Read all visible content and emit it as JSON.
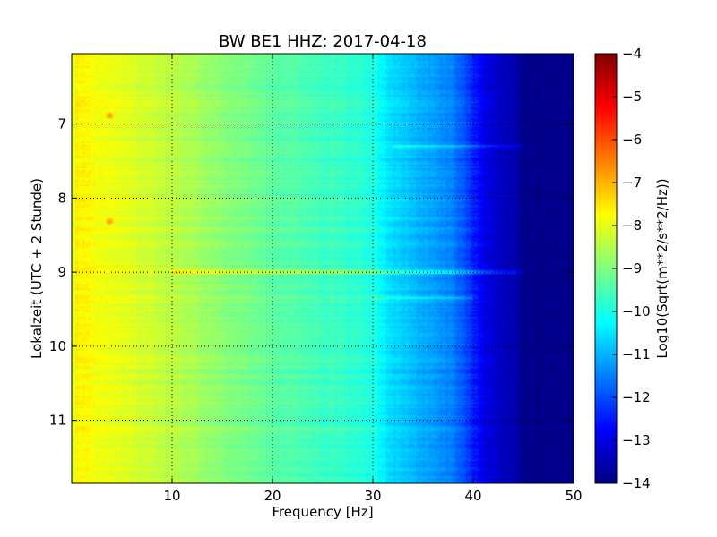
{
  "chart_data": {
    "type": "heatmap",
    "title": "BW BE1 HHZ: 2017-04-18",
    "xlabel": "Frequency [Hz]",
    "ylabel": "Lokalzeit (UTC + 2 Stunde)",
    "xlim": [
      0,
      50
    ],
    "ylim": [
      6.05,
      11.85
    ],
    "y_inverted": true,
    "x_ticks": [
      10,
      20,
      30,
      40,
      50
    ],
    "x_tick_labels": [
      "10",
      "20",
      "30",
      "40",
      "50"
    ],
    "y_ticks": [
      7,
      8,
      9,
      10,
      11
    ],
    "y_tick_labels": [
      "7",
      "8",
      "9",
      "10",
      "11"
    ],
    "grid": true,
    "grid_style": "dotted",
    "colormap": "jet",
    "colorbar": {
      "label": "Log10(Sqrt(m**2/s**2/Hz))",
      "range": [
        -14,
        -4
      ],
      "ticks": [
        -4,
        -5,
        -6,
        -7,
        -8,
        -9,
        -10,
        -11,
        -12,
        -13,
        -14
      ],
      "tick_labels": [
        "−4",
        "−5",
        "−6",
        "−7",
        "−8",
        "−9",
        "−10",
        "−11",
        "−12",
        "−13",
        "−14"
      ]
    },
    "spectrum_profile": {
      "frequency_hz": [
        0,
        0.5,
        2,
        5,
        10,
        15,
        20,
        25,
        30,
        31,
        32,
        34,
        36,
        38,
        39,
        40,
        41,
        42,
        43,
        44,
        44.5,
        45,
        50
      ],
      "value": [
        -8.3,
        -7.6,
        -7.8,
        -8.0,
        -8.4,
        -8.9,
        -9.3,
        -9.6,
        -9.9,
        -10.3,
        -10.6,
        -10.9,
        -11.2,
        -11.5,
        -11.9,
        -12.4,
        -12.9,
        -13.2,
        -13.4,
        -13.5,
        -13.7,
        -13.9,
        -13.9
      ]
    },
    "annotations": [
      {
        "type": "horizontal_line",
        "time_hour": 9.0,
        "freq_range_hz": [
          10,
          45
        ],
        "value_delta": 1.5
      },
      {
        "type": "horizontal_line",
        "time_hour": 7.3,
        "freq_range_hz": [
          32,
          45
        ],
        "value_delta": 0.8
      },
      {
        "type": "horizontal_line",
        "time_hour": 9.35,
        "freq_range_hz": [
          30,
          40
        ],
        "value_delta": 0.6
      },
      {
        "type": "spot",
        "time_hour": 6.88,
        "freq_hz": 3.8,
        "value_delta": 1.3
      },
      {
        "type": "spot",
        "time_hour": 8.32,
        "freq_hz": 3.8,
        "value_delta": 1.3
      }
    ],
    "colors": {
      "jet": [
        "#00007f",
        "#0000ff",
        "#007fff",
        "#00ffff",
        "#7fff7f",
        "#ffff00",
        "#ff7f00",
        "#ff0000",
        "#7f0000"
      ]
    }
  }
}
